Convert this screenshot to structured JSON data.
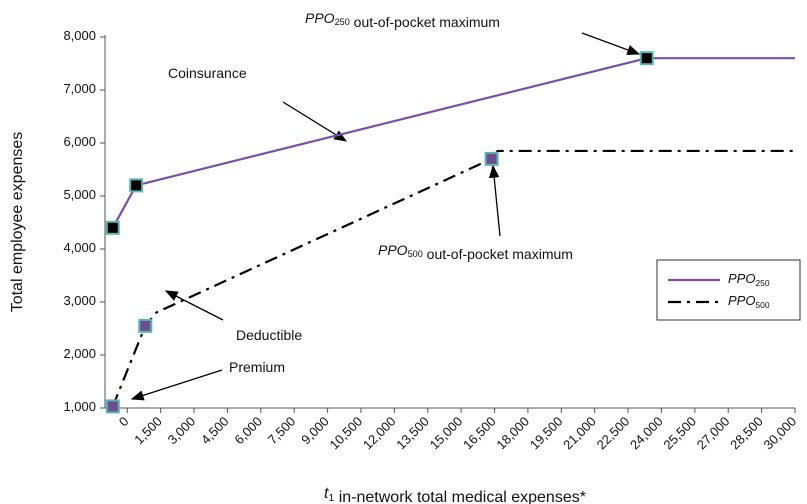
{
  "chart_data": {
    "type": "line",
    "ylabel": "Total employee expenses",
    "xlabel": "t1 in-network total medical expenses*",
    "xlim": [
      -1000,
      30000
    ],
    "ylim": [
      1000,
      8000
    ],
    "xticks": [
      0,
      {
        "value": 1500,
        "label": "1,500"
      },
      {
        "value": 3000,
        "label": "3,000"
      },
      {
        "value": 4500,
        "label": "4,500"
      },
      {
        "value": 6000,
        "label": "6,000"
      },
      {
        "value": 7500,
        "label": "7,500"
      },
      {
        "value": 9000,
        "label": "9,000"
      },
      {
        "value": 10500,
        "label": "10,500"
      },
      {
        "value": 12000,
        "label": "12,000"
      },
      {
        "value": 13500,
        "label": "13,500"
      },
      {
        "value": 15000,
        "label": "15,000"
      },
      {
        "value": 16500,
        "label": "16,500"
      },
      {
        "value": 18000,
        "label": "18,000"
      },
      {
        "value": 19500,
        "label": "19,500"
      },
      {
        "value": 21000,
        "label": "21,000"
      },
      {
        "value": 22500,
        "label": "22,500"
      },
      {
        "value": 24000,
        "label": "24,000"
      },
      {
        "value": 25500,
        "label": "25,500"
      },
      {
        "value": 27000,
        "label": "27,000"
      },
      {
        "value": 28500,
        "label": "28,500"
      },
      {
        "value": 30000,
        "label": "30,000"
      }
    ],
    "yticks": [
      {
        "value": 1000,
        "label": "1,000"
      },
      {
        "value": 2000,
        "label": "2,000"
      },
      {
        "value": 3000,
        "label": "3,000"
      },
      {
        "value": 4000,
        "label": "4,000"
      },
      {
        "value": 5000,
        "label": "5,000"
      },
      {
        "value": 6000,
        "label": "6,000"
      },
      {
        "value": 7000,
        "label": "7,000"
      },
      {
        "value": 8000,
        "label": "8,000"
      }
    ],
    "legend": "right",
    "series": [
      {
        "name": "PPO250",
        "color": "#7b4fa8",
        "dash": "solid",
        "marker_color": "#000000",
        "marker_edge": "#5bb5b5",
        "x": [
          -650,
          400,
          23340,
          30000
        ],
        "values": [
          4400,
          5200,
          7600,
          7600
        ],
        "markers": [
          0,
          1,
          2
        ]
      },
      {
        "name": "PPO500",
        "color": "#000000",
        "dash": "dashdot",
        "marker_color": "#6b4f8f",
        "marker_edge": "#5bb5b5",
        "x": [
          -650,
          810,
          1300,
          16370,
          16640,
          30000
        ],
        "values": [
          1030,
          2550,
          2800,
          5700,
          5850,
          5850
        ],
        "markers": [
          0,
          1,
          3
        ]
      }
    ],
    "annotations": [
      "PPO250 out-of-pocket maximum",
      "Coinsurance",
      "PPO500 out-of-pocket maximum",
      "Deductible",
      "Premium"
    ]
  }
}
